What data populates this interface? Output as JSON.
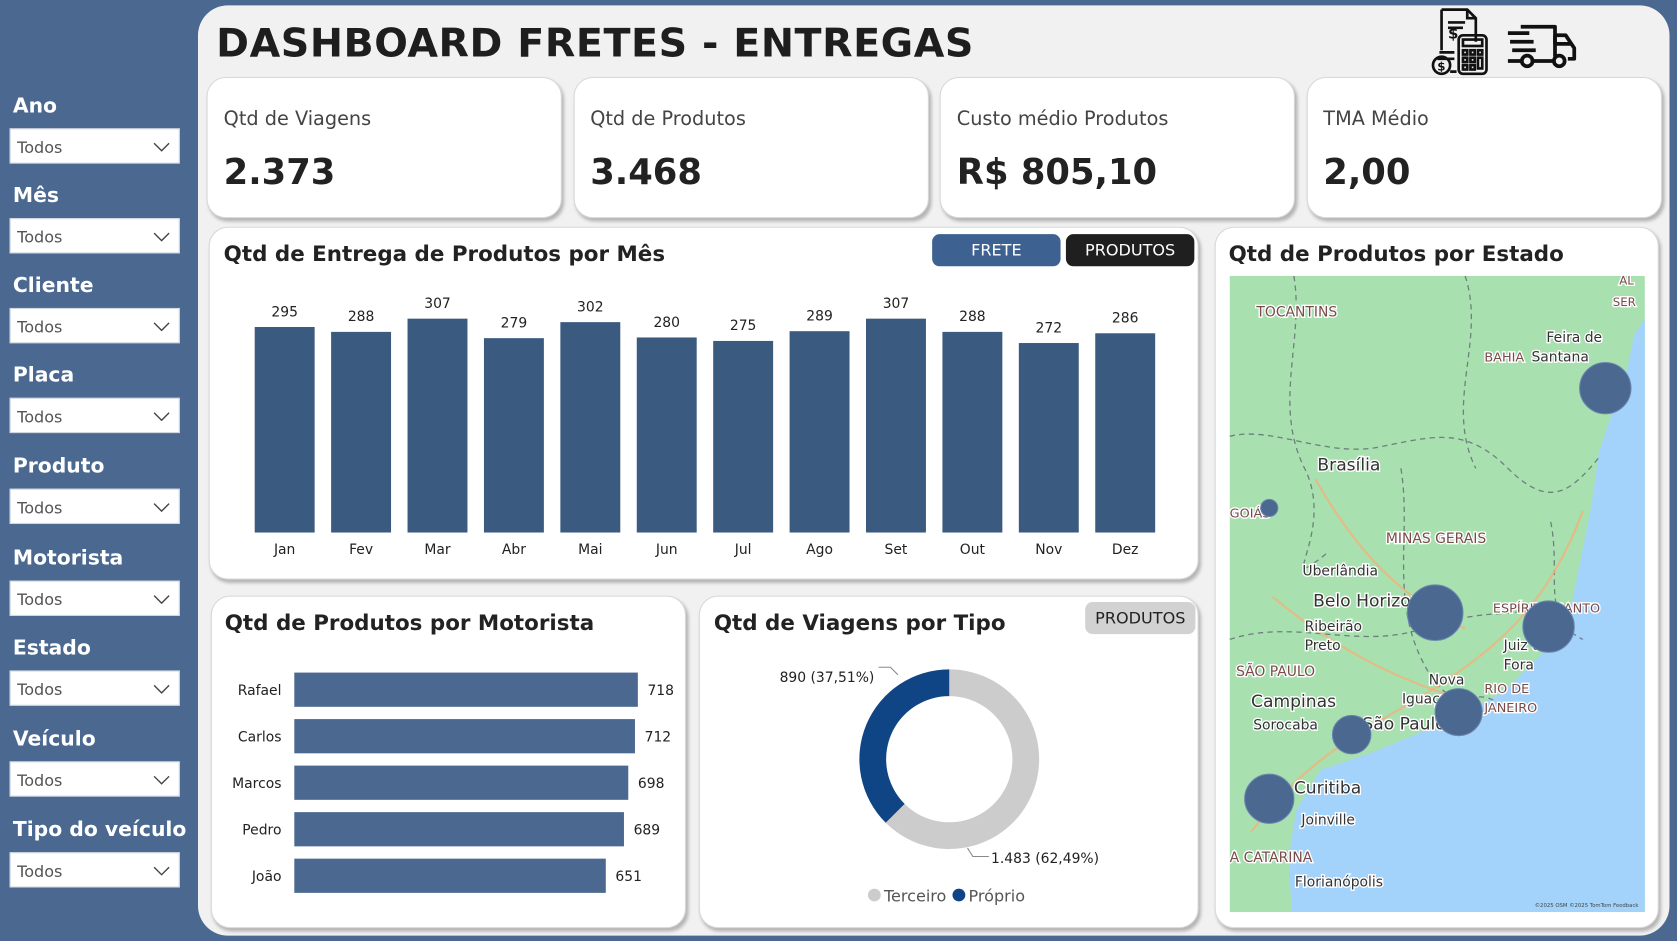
{
  "header": {
    "title": "DASHBOARD FRETES - ENTREGAS",
    "icons": [
      "invoice-calculator-icon",
      "delivery-truck-icon"
    ]
  },
  "filters": [
    {
      "label": "Ano",
      "value": "Todos"
    },
    {
      "label": "Mês",
      "value": "Todos"
    },
    {
      "label": "Cliente",
      "value": "Todos"
    },
    {
      "label": "Placa",
      "value": "Todos"
    },
    {
      "label": "Produto",
      "value": "Todos"
    },
    {
      "label": "Motorista",
      "value": "Todos"
    },
    {
      "label": "Estado",
      "value": "Todos"
    },
    {
      "label": "Veículo",
      "value": "Todos"
    },
    {
      "label": "Tipo do veículo",
      "value": "Todos"
    }
  ],
  "kpis": [
    {
      "label": "Qtd de Viagens",
      "value": "2.373"
    },
    {
      "label": "Qtd de Produtos",
      "value": "3.468"
    },
    {
      "label": "Custo médio Produtos",
      "value": "R$ 805,10"
    },
    {
      "label": "TMA Médio",
      "value": "2,00"
    }
  ],
  "colors": {
    "sidebar": "#4a6890",
    "bar": "#3a5a80",
    "hbar": "#4a6890",
    "proprio": "#0f4585",
    "terceiro": "#cccccc",
    "frete_btn": "#3d6190",
    "produtos_btn": "#1f1f1f"
  },
  "monthly": {
    "title": "Qtd de Entrega de Produtos por Mês",
    "buttons": {
      "frete": "FRETE",
      "produtos": "PRODUTOS"
    }
  },
  "motorista": {
    "title": "Qtd de Produtos por Motorista"
  },
  "tipo": {
    "title": "Qtd de Viagens por Tipo",
    "button": "PRODUTOS"
  },
  "map": {
    "title": "Qtd de Produtos por Estado",
    "labels": [
      "TOCANTINS",
      "Feira de",
      "Santana",
      "BAHIA",
      "Brasília",
      "GOIÁS",
      "MINAS GERAIS",
      "Uberlândia",
      "Belo Horizonte",
      "Ribeirão",
      "Preto",
      "ESPÍRITO SANTO",
      "Juiz de",
      "Fora",
      "SÃO PAULO",
      "Nova",
      "Iguaçu",
      "RIO DE",
      "JANEIRO",
      "Campinas",
      "Sorocaba",
      "São Paulo",
      "Curitiba",
      "Joinville",
      "A CATARINA",
      "Florianópolis",
      "AL",
      "SER"
    ],
    "attribution": "©2025 OSM ©2025 TomTom Feedback"
  },
  "chart_data": [
    {
      "type": "bar",
      "title": "Qtd de Entrega de Produtos por Mês",
      "categories": [
        "Jan",
        "Fev",
        "Mar",
        "Abr",
        "Mai",
        "Jun",
        "Jul",
        "Ago",
        "Set",
        "Out",
        "Nov",
        "Dez"
      ],
      "values": [
        295,
        288,
        307,
        279,
        302,
        280,
        275,
        289,
        307,
        288,
        272,
        286
      ],
      "ylim": [
        0,
        320
      ],
      "grid": false
    },
    {
      "type": "bar",
      "orientation": "horizontal",
      "title": "Qtd de Produtos por Motorista",
      "categories": [
        "Rafael",
        "Carlos",
        "Marcos",
        "Pedro",
        "João"
      ],
      "values": [
        718,
        712,
        698,
        689,
        651
      ]
    },
    {
      "type": "pie",
      "donut": true,
      "title": "Qtd de Viagens por Tipo",
      "series": [
        {
          "name": "Terceiro",
          "value": 1483,
          "label": "1.483 (62,49%)"
        },
        {
          "name": "Próprio",
          "value": 890,
          "label": "890 (37,51%)"
        }
      ],
      "legend": "bottom"
    }
  ]
}
